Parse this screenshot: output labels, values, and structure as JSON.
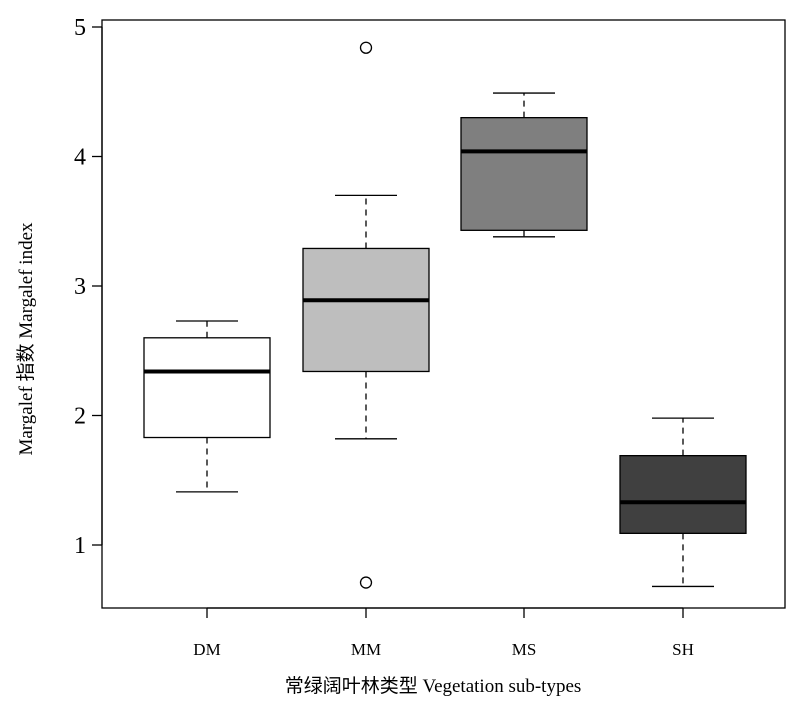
{
  "chart_data": {
    "type": "boxplot",
    "title": "",
    "xlabel": "常绿阔叶林类型  Vegetation sub-types",
    "ylabel": "Margalef 指数 Margalef index",
    "ylim": [
      0.5,
      5
    ],
    "yticks": [
      1,
      2,
      3,
      4,
      5
    ],
    "grid": false,
    "categories": [
      "DM",
      "MM",
      "MS",
      "SH"
    ],
    "boxes": [
      {
        "category": "DM",
        "whisker_low": 1.41,
        "q1": 1.83,
        "median": 2.34,
        "q3": 2.6,
        "whisker_high": 2.73,
        "outliers": [],
        "color": "#ffffff"
      },
      {
        "category": "MM",
        "whisker_low": 1.82,
        "q1": 2.34,
        "median": 2.89,
        "q3": 3.29,
        "whisker_high": 3.7,
        "outliers": [
          4.84,
          0.71
        ],
        "color": "#bebebe"
      },
      {
        "category": "MS",
        "whisker_low": 3.38,
        "q1": 3.43,
        "median": 4.04,
        "q3": 4.3,
        "whisker_high": 4.49,
        "outliers": [],
        "color": "#7f7f7f"
      },
      {
        "category": "SH",
        "whisker_low": 0.68,
        "q1": 1.09,
        "median": 1.33,
        "q3": 1.69,
        "whisker_high": 1.98,
        "outliers": [],
        "color": "#404040"
      }
    ]
  }
}
